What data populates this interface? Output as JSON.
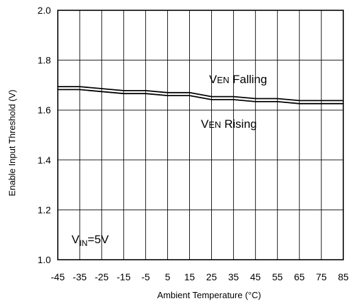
{
  "chart_data": {
    "type": "line",
    "xlabel": "Ambient Temperature (°C)",
    "ylabel": "Enable Input Threshold  (V)",
    "xlim": [
      -45,
      85
    ],
    "ylim": [
      1.0,
      2.0
    ],
    "xticks": [
      -45,
      -35,
      -25,
      -15,
      -5,
      5,
      15,
      25,
      35,
      45,
      55,
      65,
      75,
      85
    ],
    "xtick_labels": [
      "-45",
      "-35",
      "-25",
      "-15",
      "-5",
      "5",
      "15",
      "25",
      "35",
      "45",
      "55",
      "65",
      "75",
      "85"
    ],
    "yticks": [
      1.0,
      1.2,
      1.4,
      1.6,
      1.8,
      2.0
    ],
    "ytick_labels": [
      "1.0",
      "1.2",
      "1.4",
      "1.6",
      "1.8",
      "2.0"
    ],
    "grid": true,
    "x": [
      -45,
      -35,
      -25,
      -15,
      -5,
      5,
      15,
      25,
      35,
      45,
      55,
      65,
      75,
      85
    ],
    "series": [
      {
        "name": "VEN Falling",
        "values": [
          1.694,
          1.694,
          1.686,
          1.678,
          1.678,
          1.67,
          1.67,
          1.654,
          1.654,
          1.646,
          1.646,
          1.638,
          1.638,
          1.638
        ]
      },
      {
        "name": "VEN Rising",
        "values": [
          1.682,
          1.682,
          1.674,
          1.666,
          1.666,
          1.658,
          1.658,
          1.642,
          1.642,
          1.634,
          1.634,
          1.626,
          1.626,
          1.626
        ]
      }
    ],
    "annotations": {
      "falling": {
        "prefix": "V",
        "sub": "EN",
        "text": " Falling"
      },
      "rising": {
        "prefix": "V",
        "sub": "EN",
        "text": " Rising"
      },
      "vin": {
        "prefix": "V",
        "sub": "IN",
        "text": "=5V"
      }
    }
  }
}
